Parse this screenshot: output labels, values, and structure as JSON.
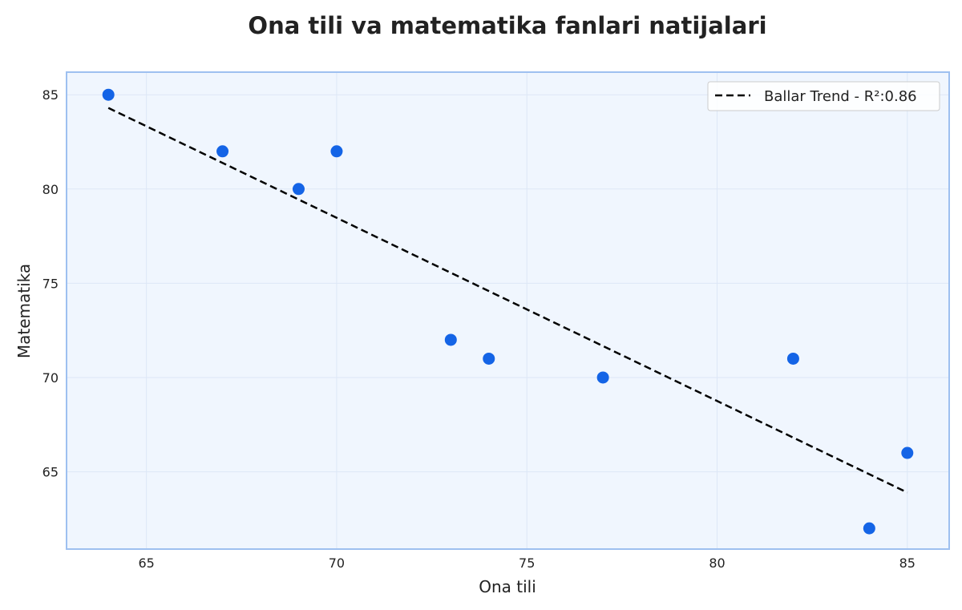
{
  "chart_data": {
    "type": "scatter",
    "title": "Ona tili va matematika fanlari natijalari",
    "xlabel": "Ona tili",
    "ylabel": "Matematika",
    "xlim": [
      62.9,
      86.1
    ],
    "ylim": [
      60.9,
      86.2
    ],
    "xticks": [
      65,
      70,
      75,
      80,
      85
    ],
    "yticks": [
      65,
      70,
      75,
      80,
      85
    ],
    "grid": true,
    "legend_position": "top-right",
    "series": [
      {
        "type": "scatter",
        "color": "#1464e6",
        "points": [
          {
            "x": 64,
            "y": 85
          },
          {
            "x": 67,
            "y": 82
          },
          {
            "x": 69,
            "y": 80
          },
          {
            "x": 70,
            "y": 82
          },
          {
            "x": 73,
            "y": 72
          },
          {
            "x": 74,
            "y": 71
          },
          {
            "x": 77,
            "y": 70
          },
          {
            "x": 82,
            "y": 71
          },
          {
            "x": 84,
            "y": 62
          },
          {
            "x": 85,
            "y": 66
          }
        ]
      },
      {
        "type": "line",
        "style": "dashed",
        "color": "#000000",
        "name": "Ballar Trend - R²:0.86",
        "points": [
          {
            "x": 64,
            "y": 84.3
          },
          {
            "x": 85,
            "y": 63.9
          }
        ]
      }
    ],
    "colors": {
      "plot_background": "#f0f6fe",
      "plot_border": "#9ec0f0",
      "grid": "#dde7f6"
    }
  }
}
